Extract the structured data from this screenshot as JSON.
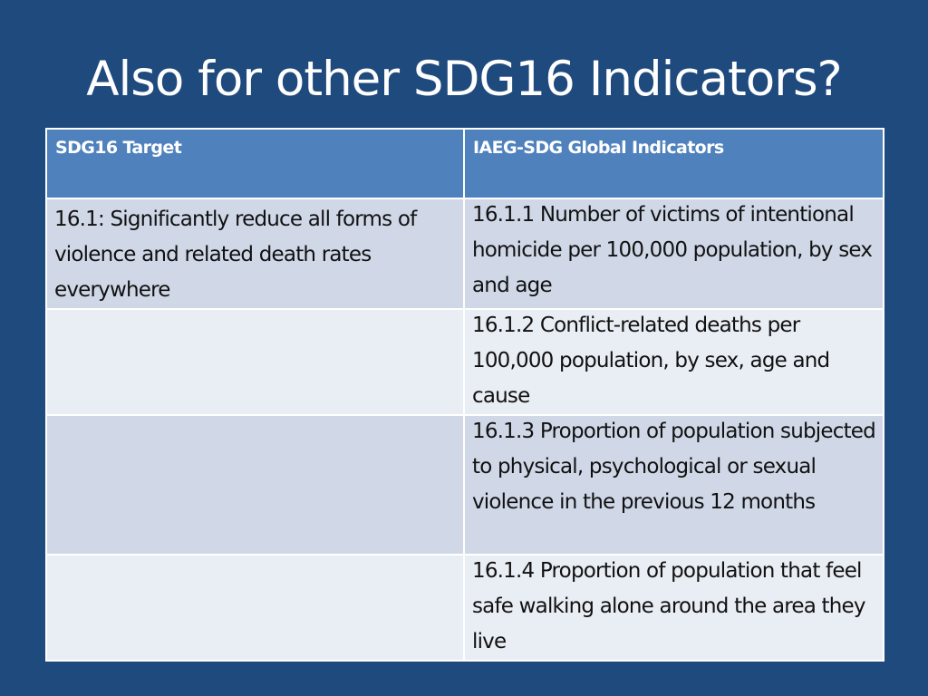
{
  "slide": {
    "title": "Also for other SDG16 Indicators?"
  },
  "table": {
    "headers": [
      "SDG16 Target",
      "IAEG-SDG Global Indicators"
    ],
    "rows": [
      {
        "target": "16.1: Significantly reduce all forms of violence and related death rates everywhere",
        "indicator": "16.1.1  Number of victims of intentional homicide per 100,000 population, by sex and age"
      },
      {
        "target": "",
        "indicator": "16.1.2  Conflict-related deaths per 100,000 population, by sex, age and cause"
      },
      {
        "target": "",
        "indicator": "16.1.3  Proportion of population subjected to physical, psychological or sexual violence in the previous 12 months"
      },
      {
        "target": "",
        "indicator": "16.1.4  Proportion of population that feel safe walking alone around the area they live"
      }
    ]
  },
  "colors": {
    "background": "#1f4a7d",
    "header_fill": "#4f81bd",
    "row_band_dark": "#d0d8e8",
    "row_band_light": "#e9edf4"
  }
}
